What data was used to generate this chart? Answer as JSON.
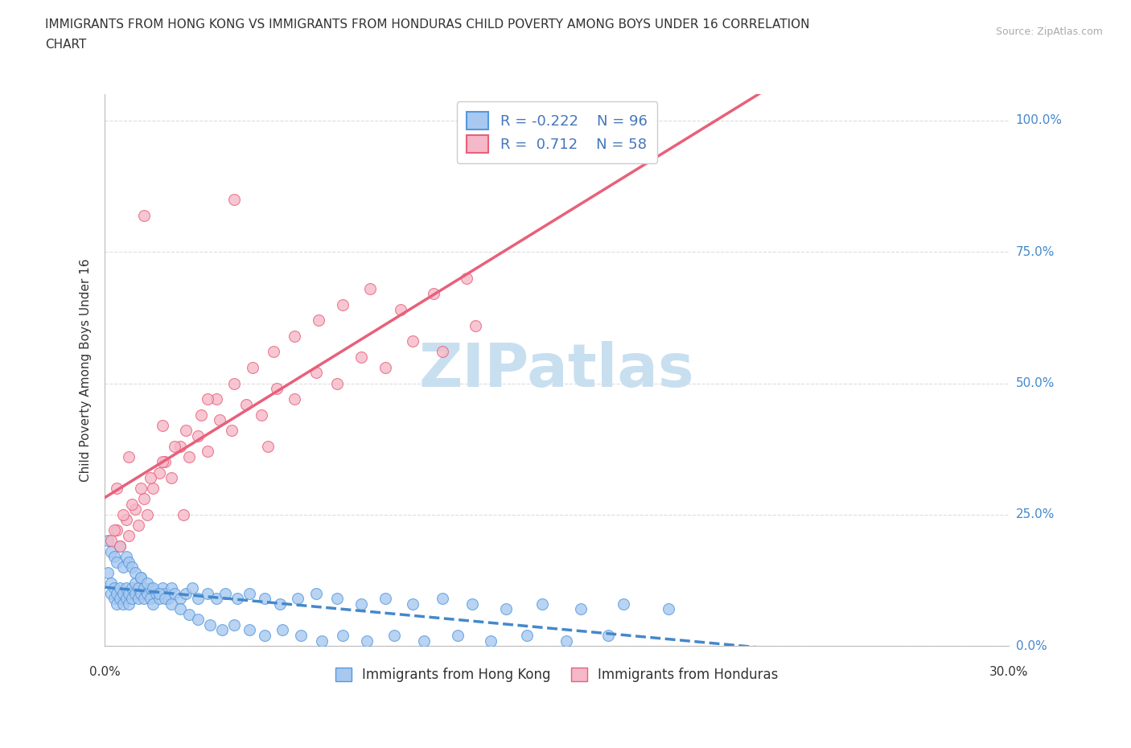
{
  "title_line1": "IMMIGRANTS FROM HONG KONG VS IMMIGRANTS FROM HONDURAS CHILD POVERTY AMONG BOYS UNDER 16 CORRELATION",
  "title_line2": "CHART",
  "source_text": "Source: ZipAtlas.com",
  "ylabel": "Child Poverty Among Boys Under 16",
  "xlim": [
    0.0,
    0.3
  ],
  "ylim": [
    0.0,
    1.05
  ],
  "ytick_labels": [
    "0.0%",
    "25.0%",
    "50.0%",
    "75.0%",
    "100.0%"
  ],
  "ytick_values": [
    0.0,
    0.25,
    0.5,
    0.75,
    1.0
  ],
  "xtick_values": [
    0.0,
    0.05,
    0.1,
    0.15,
    0.2,
    0.25,
    0.3
  ],
  "hk_color": "#a8c8f0",
  "hk_edge_color": "#5599dd",
  "hk_line_color": "#4488cc",
  "hk_R": -0.222,
  "hk_N": 96,
  "hnd_color": "#f5b8c8",
  "hnd_edge_color": "#e8607a",
  "hnd_line_color": "#e8607a",
  "hnd_R": 0.712,
  "hnd_N": 58,
  "watermark": "ZIPatlas",
  "watermark_color": "#c8dff0",
  "legend_label_hk": "Immigrants from Hong Kong",
  "legend_label_hnd": "Immigrants from Honduras",
  "background_color": "#ffffff",
  "grid_color": "#dddddd",
  "hk_x": [
    0.001,
    0.002,
    0.002,
    0.003,
    0.003,
    0.004,
    0.004,
    0.005,
    0.005,
    0.006,
    0.006,
    0.007,
    0.007,
    0.008,
    0.008,
    0.009,
    0.009,
    0.01,
    0.01,
    0.011,
    0.011,
    0.012,
    0.012,
    0.013,
    0.013,
    0.014,
    0.015,
    0.015,
    0.016,
    0.017,
    0.018,
    0.019,
    0.02,
    0.021,
    0.022,
    0.023,
    0.025,
    0.027,
    0.029,
    0.031,
    0.034,
    0.037,
    0.04,
    0.044,
    0.048,
    0.053,
    0.058,
    0.064,
    0.07,
    0.077,
    0.085,
    0.093,
    0.102,
    0.112,
    0.122,
    0.133,
    0.145,
    0.158,
    0.172,
    0.187,
    0.001,
    0.002,
    0.003,
    0.004,
    0.005,
    0.006,
    0.007,
    0.008,
    0.009,
    0.01,
    0.012,
    0.014,
    0.016,
    0.018,
    0.02,
    0.022,
    0.025,
    0.028,
    0.031,
    0.035,
    0.039,
    0.043,
    0.048,
    0.053,
    0.059,
    0.065,
    0.072,
    0.079,
    0.087,
    0.096,
    0.106,
    0.117,
    0.128,
    0.14,
    0.153,
    0.167
  ],
  "hk_y": [
    0.14,
    0.12,
    0.1,
    0.11,
    0.09,
    0.1,
    0.08,
    0.11,
    0.09,
    0.1,
    0.08,
    0.09,
    0.11,
    0.1,
    0.08,
    0.09,
    0.11,
    0.1,
    0.12,
    0.09,
    0.11,
    0.1,
    0.13,
    0.09,
    0.11,
    0.1,
    0.09,
    0.11,
    0.08,
    0.1,
    0.09,
    0.11,
    0.1,
    0.09,
    0.11,
    0.1,
    0.09,
    0.1,
    0.11,
    0.09,
    0.1,
    0.09,
    0.1,
    0.09,
    0.1,
    0.09,
    0.08,
    0.09,
    0.1,
    0.09,
    0.08,
    0.09,
    0.08,
    0.09,
    0.08,
    0.07,
    0.08,
    0.07,
    0.08,
    0.07,
    0.2,
    0.18,
    0.17,
    0.16,
    0.19,
    0.15,
    0.17,
    0.16,
    0.15,
    0.14,
    0.13,
    0.12,
    0.11,
    0.1,
    0.09,
    0.08,
    0.07,
    0.06,
    0.05,
    0.04,
    0.03,
    0.04,
    0.03,
    0.02,
    0.03,
    0.02,
    0.01,
    0.02,
    0.01,
    0.02,
    0.01,
    0.02,
    0.01,
    0.02,
    0.01,
    0.02
  ],
  "hnd_x": [
    0.002,
    0.004,
    0.005,
    0.007,
    0.008,
    0.01,
    0.011,
    0.013,
    0.014,
    0.016,
    0.018,
    0.02,
    0.022,
    0.025,
    0.028,
    0.031,
    0.034,
    0.038,
    0.042,
    0.047,
    0.052,
    0.057,
    0.063,
    0.07,
    0.077,
    0.085,
    0.093,
    0.102,
    0.112,
    0.123,
    0.003,
    0.006,
    0.009,
    0.012,
    0.015,
    0.019,
    0.023,
    0.027,
    0.032,
    0.037,
    0.043,
    0.049,
    0.056,
    0.063,
    0.071,
    0.079,
    0.088,
    0.098,
    0.109,
    0.12,
    0.004,
    0.008,
    0.013,
    0.019,
    0.026,
    0.034,
    0.043,
    0.054
  ],
  "hnd_y": [
    0.2,
    0.22,
    0.19,
    0.24,
    0.21,
    0.26,
    0.23,
    0.28,
    0.25,
    0.3,
    0.33,
    0.35,
    0.32,
    0.38,
    0.36,
    0.4,
    0.37,
    0.43,
    0.41,
    0.46,
    0.44,
    0.49,
    0.47,
    0.52,
    0.5,
    0.55,
    0.53,
    0.58,
    0.56,
    0.61,
    0.22,
    0.25,
    0.27,
    0.3,
    0.32,
    0.35,
    0.38,
    0.41,
    0.44,
    0.47,
    0.5,
    0.53,
    0.56,
    0.59,
    0.62,
    0.65,
    0.68,
    0.64,
    0.67,
    0.7,
    0.3,
    0.36,
    0.82,
    0.42,
    0.25,
    0.47,
    0.85,
    0.38
  ]
}
